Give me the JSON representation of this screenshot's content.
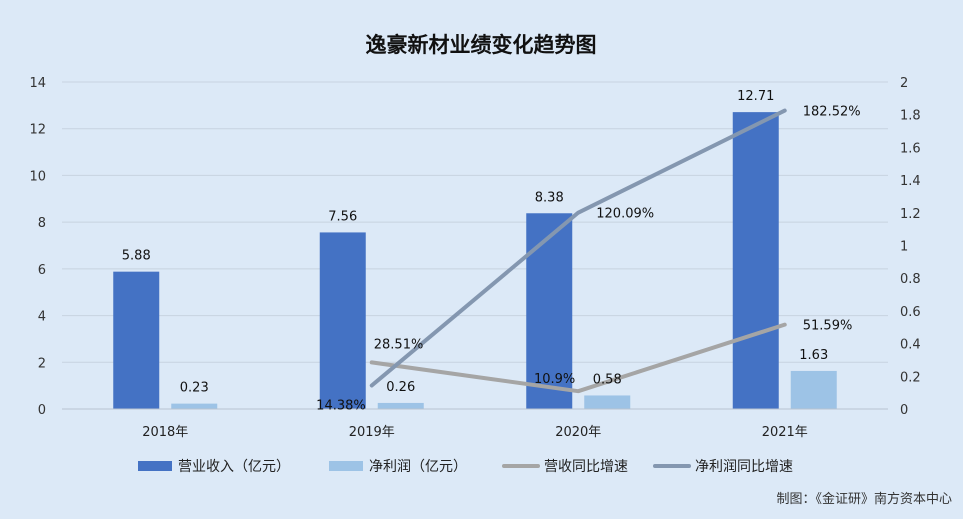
{
  "chart_data": {
    "type": "bar",
    "title": "逸豪新材业绩变化趋势图",
    "categories": [
      "2018年",
      "2019年",
      "2020年",
      "2021年"
    ],
    "ylim": [
      0,
      14
    ],
    "yticks": [
      0,
      2,
      4,
      6,
      8,
      10,
      12,
      14
    ],
    "y2lim": [
      0,
      2
    ],
    "y2ticks": [
      0,
      0.2,
      0.4,
      0.6,
      0.8,
      1,
      1.2,
      1.4,
      1.6,
      1.8,
      2
    ],
    "grid": true,
    "legend_position": "bottom",
    "series": [
      {
        "name": "营业收入（亿元）",
        "type": "bar",
        "axis": "left",
        "color": "#4472c4",
        "values": [
          5.88,
          7.56,
          8.38,
          12.71
        ],
        "labels": [
          "5.88",
          "7.56",
          "8.38",
          "12.71"
        ]
      },
      {
        "name": "净利润（亿元）",
        "type": "bar",
        "axis": "left",
        "color": "#9dc3e6",
        "values": [
          0.23,
          0.26,
          0.58,
          1.63
        ],
        "labels": [
          "0.23",
          "0.26",
          "0.58",
          "1.63"
        ]
      },
      {
        "name": "营收同比增速",
        "type": "line",
        "axis": "right",
        "color": "#a5a5a5",
        "values": [
          null,
          0.2851,
          0.109,
          0.5159
        ],
        "labels": [
          "",
          "28.51%",
          "10.9%",
          "51.59%"
        ]
      },
      {
        "name": "净利润同比增速",
        "type": "line",
        "axis": "right",
        "color": "#8497b0",
        "values": [
          null,
          0.1438,
          1.2009,
          1.8252
        ],
        "labels": [
          "",
          "14.38%",
          "120.09%",
          "182.52%"
        ]
      }
    ],
    "source": "制图：《金证研》南方资本中心"
  }
}
